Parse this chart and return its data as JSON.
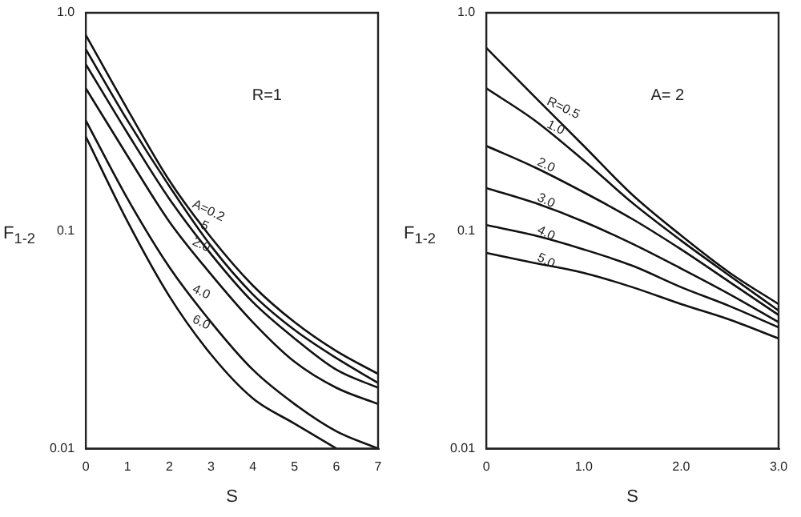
{
  "chart_data": [
    {
      "type": "line",
      "xlabel": "S",
      "ylabel": "F$_{1-2}$",
      "x": [
        0,
        1,
        2,
        3,
        4,
        5,
        6,
        7
      ],
      "xlim": [
        0,
        7
      ],
      "xticks": [
        0,
        1,
        2,
        3,
        4,
        5,
        6,
        7
      ],
      "log": "y",
      "ylim": [
        0.01,
        1
      ],
      "yticks": [
        {
          "value": 0.01,
          "label": "0.01"
        },
        {
          "value": 0.1,
          "label": "0.1"
        },
        {
          "value": 1,
          "label": "1.0"
        }
      ],
      "grid": false,
      "legend": false,
      "marker": "none",
      "line_style": "solid",
      "series": [
        {
          "color": "#111111",
          "values": [
            0.79,
            0.36,
            0.17,
            0.093,
            0.056,
            0.038,
            0.028,
            0.022
          ]
        },
        {
          "color": "#111111",
          "values": [
            0.68,
            0.32,
            0.16,
            0.085,
            0.051,
            0.035,
            0.026,
            0.02
          ]
        },
        {
          "color": "#111111",
          "values": [
            0.58,
            0.28,
            0.14,
            0.078,
            0.047,
            0.032,
            0.023,
            0.019
          ]
        },
        {
          "color": "#111111",
          "values": [
            0.45,
            0.22,
            0.11,
            0.063,
            0.038,
            0.025,
            0.019,
            0.016
          ]
        },
        {
          "color": "#111111",
          "values": [
            0.32,
            0.14,
            0.068,
            0.038,
            0.023,
            0.016,
            0.012,
            0.01
          ]
        },
        {
          "color": "#111111",
          "x": [
            0,
            1,
            2,
            3,
            4,
            5,
            6
          ],
          "values": [
            0.27,
            0.11,
            0.05,
            0.027,
            0.017,
            0.013,
            0.01
          ]
        }
      ],
      "annotations": [
        "R=1",
        {
          "text": "A=0.2",
          "x": 2.5,
          "y": 0.125
        },
        {
          "text": "5",
          "x": 2.7,
          "y": 0.1
        },
        {
          "text": "2.0",
          "x": 2.5,
          "y": 0.084
        },
        {
          "text": "4.0",
          "x": 2.5,
          "y": 0.051
        },
        {
          "text": "6.0",
          "x": 2.5,
          "y": 0.037
        }
      ]
    },
    {
      "type": "line",
      "xlabel": "S",
      "ylabel": "F$_{1-2}$",
      "x": [
        0,
        0.5,
        1,
        1.5,
        2,
        2.5,
        3
      ],
      "xlim": [
        0,
        3
      ],
      "xticks": [
        0,
        {
          "value": 1,
          "label": "1.0"
        },
        {
          "value": 2,
          "label": "2.0"
        },
        {
          "value": 3,
          "label": "3.0"
        }
      ],
      "log": "y",
      "ylim": [
        0.01,
        1
      ],
      "yticks": [
        {
          "value": 0.01,
          "label": "0.01"
        },
        {
          "value": 0.1,
          "label": "0.1"
        },
        {
          "value": 1,
          "label": "1.0"
        }
      ],
      "grid": false,
      "legend": false,
      "marker": "none",
      "line_style": "solid",
      "series": [
        {
          "color": "#111111",
          "values": [
            0.69,
            0.41,
            0.245,
            0.146,
            0.095,
            0.064,
            0.046
          ]
        },
        {
          "color": "#111111",
          "values": [
            0.45,
            0.32,
            0.21,
            0.134,
            0.09,
            0.062,
            0.043
          ]
        },
        {
          "color": "#111111",
          "values": [
            0.245,
            0.195,
            0.15,
            0.113,
            0.082,
            0.058,
            0.041
          ]
        },
        {
          "color": "#111111",
          "values": [
            0.157,
            0.134,
            0.11,
            0.087,
            0.067,
            0.051,
            0.038
          ]
        },
        {
          "color": "#111111",
          "values": [
            0.106,
            0.095,
            0.082,
            0.069,
            0.055,
            0.045,
            0.036
          ]
        },
        {
          "color": "#111111",
          "values": [
            0.079,
            0.071,
            0.064,
            0.055,
            0.046,
            0.039,
            0.032
          ]
        }
      ],
      "annotations": [
        "A= 2",
        {
          "text": "R=0.5",
          "x": 0.6,
          "y": 0.37
        },
        {
          "text": "1.0",
          "x": 0.6,
          "y": 0.29
        },
        {
          "text": "2.0",
          "x": 0.5,
          "y": 0.195
        },
        {
          "text": "3.0",
          "x": 0.5,
          "y": 0.134
        },
        {
          "text": "4.0",
          "x": 0.5,
          "y": 0.095
        },
        {
          "text": "5.0",
          "x": 0.5,
          "y": 0.071
        }
      ]
    }
  ]
}
